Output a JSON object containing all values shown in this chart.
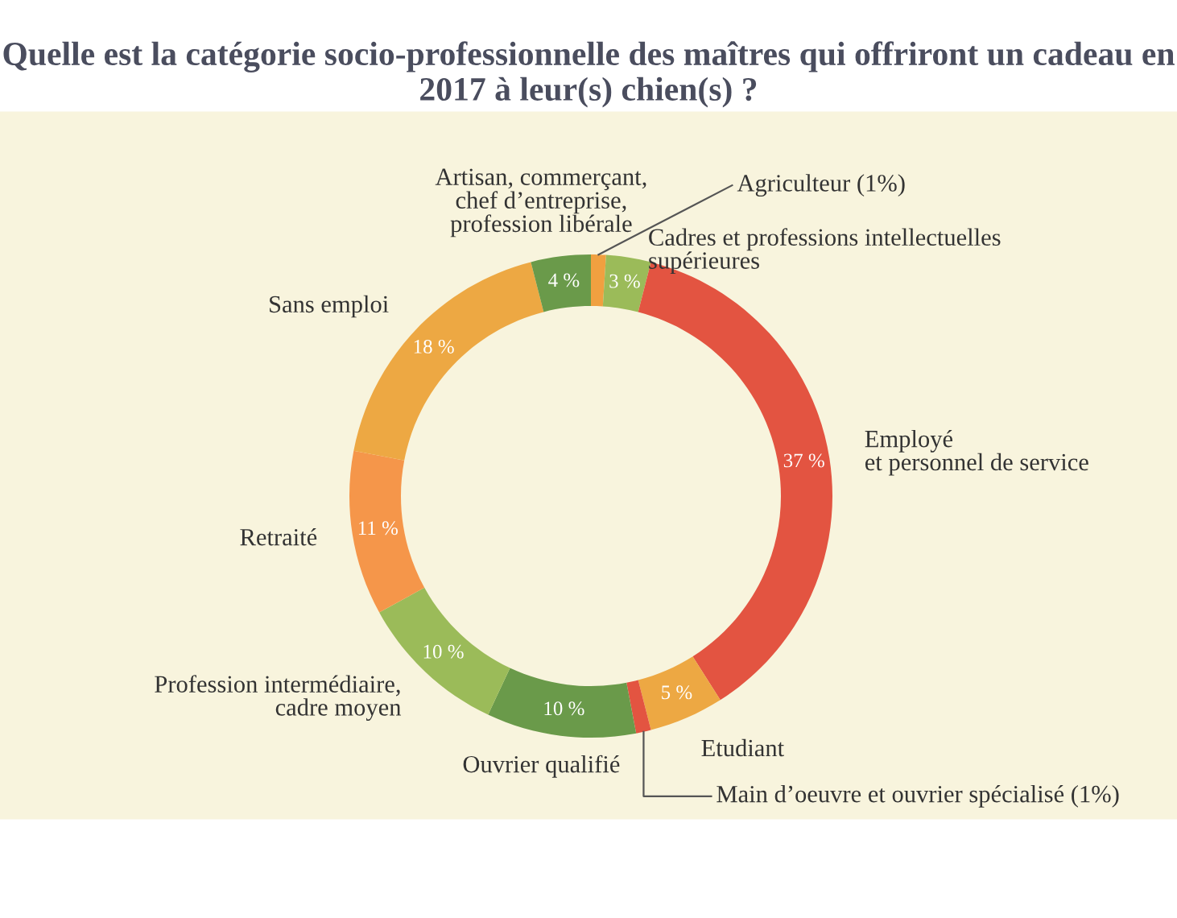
{
  "chart_data": {
    "type": "donut",
    "title": "Quelle est la catégorie socio-professionnelle des maîtres qui offriront un cadeau en 2017 à leur(s) chien(s) ?",
    "categories": [
      "Agriculteur (1%)",
      "Cadres et professions intellectuelles\nsupérieures",
      "Employé\net personnel de service",
      "Etudiant",
      "Main d’oeuvre et ouvrier spécialisé (1%)",
      "Ouvrier qualifié",
      "Profession intermédiaire,\ncadre moyen",
      "Retraité",
      "Sans emploi",
      "Artisan, commerçant,\nchef d’entreprise,\nprofession libérale"
    ],
    "values": [
      1,
      3,
      37,
      5,
      1,
      10,
      10,
      11,
      18,
      4
    ],
    "value_labels": [
      null,
      "3 %",
      "37 %",
      "5 %",
      null,
      "10 %",
      "10 %",
      "11 %",
      "18 %",
      "4 %"
    ],
    "colors": [
      "#f0a040",
      "#9bbb59",
      "#e35441",
      "#eda843",
      "#e35441",
      "#6a9a4a",
      "#9bbb59",
      "#f5964a",
      "#eda843",
      "#6a9a4a"
    ],
    "legend": false
  }
}
